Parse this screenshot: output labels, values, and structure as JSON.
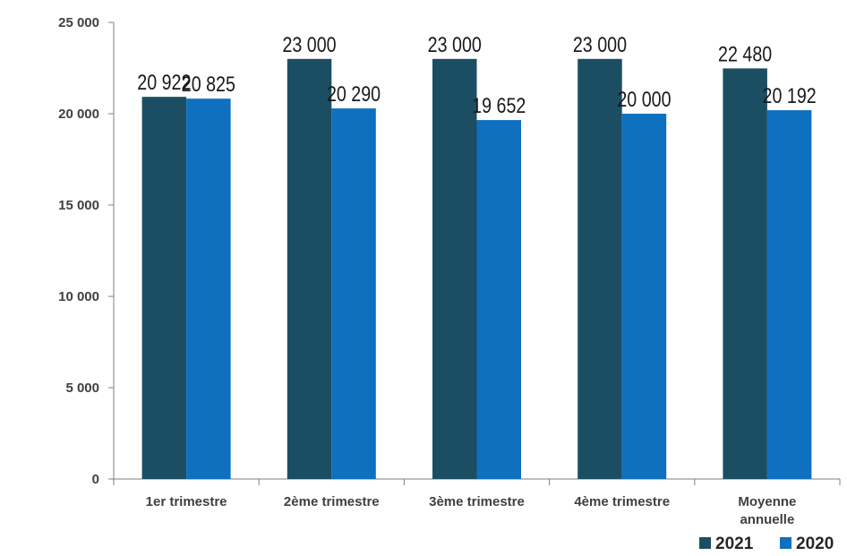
{
  "chart_data": {
    "type": "bar",
    "categories": [
      "1er trimestre",
      "2ème trimestre",
      "3ème trimestre",
      "4ème trimestre",
      "Moyenne annuelle"
    ],
    "category_lines": [
      [
        "1er trimestre"
      ],
      [
        "2ème trimestre"
      ],
      [
        "3ème trimestre"
      ],
      [
        "4ème trimestre"
      ],
      [
        "Moyenne",
        "annuelle"
      ]
    ],
    "series": [
      {
        "name": "2021",
        "color": "#1b4e62",
        "values": [
          20922,
          23000,
          23000,
          23000,
          22480
        ],
        "labels": [
          "20 922",
          "23 000",
          "23 000",
          "23 000",
          "22 480"
        ]
      },
      {
        "name": "2020",
        "color": "#0f70c0",
        "values": [
          20825,
          20290,
          19652,
          20000,
          20192
        ],
        "labels": [
          "20 825",
          "20 290",
          "19 652",
          "20 000",
          "20 192"
        ]
      }
    ],
    "ylim": [
      0,
      25000
    ],
    "yticks": [
      0,
      5000,
      10000,
      15000,
      20000,
      25000
    ],
    "ytick_labels": [
      "0",
      "5 000",
      "10 000",
      "15 000",
      "20 000",
      "25 000"
    ],
    "title": "",
    "xlabel": "",
    "ylabel": "",
    "grid": false,
    "legend_position": "bottom-right"
  }
}
